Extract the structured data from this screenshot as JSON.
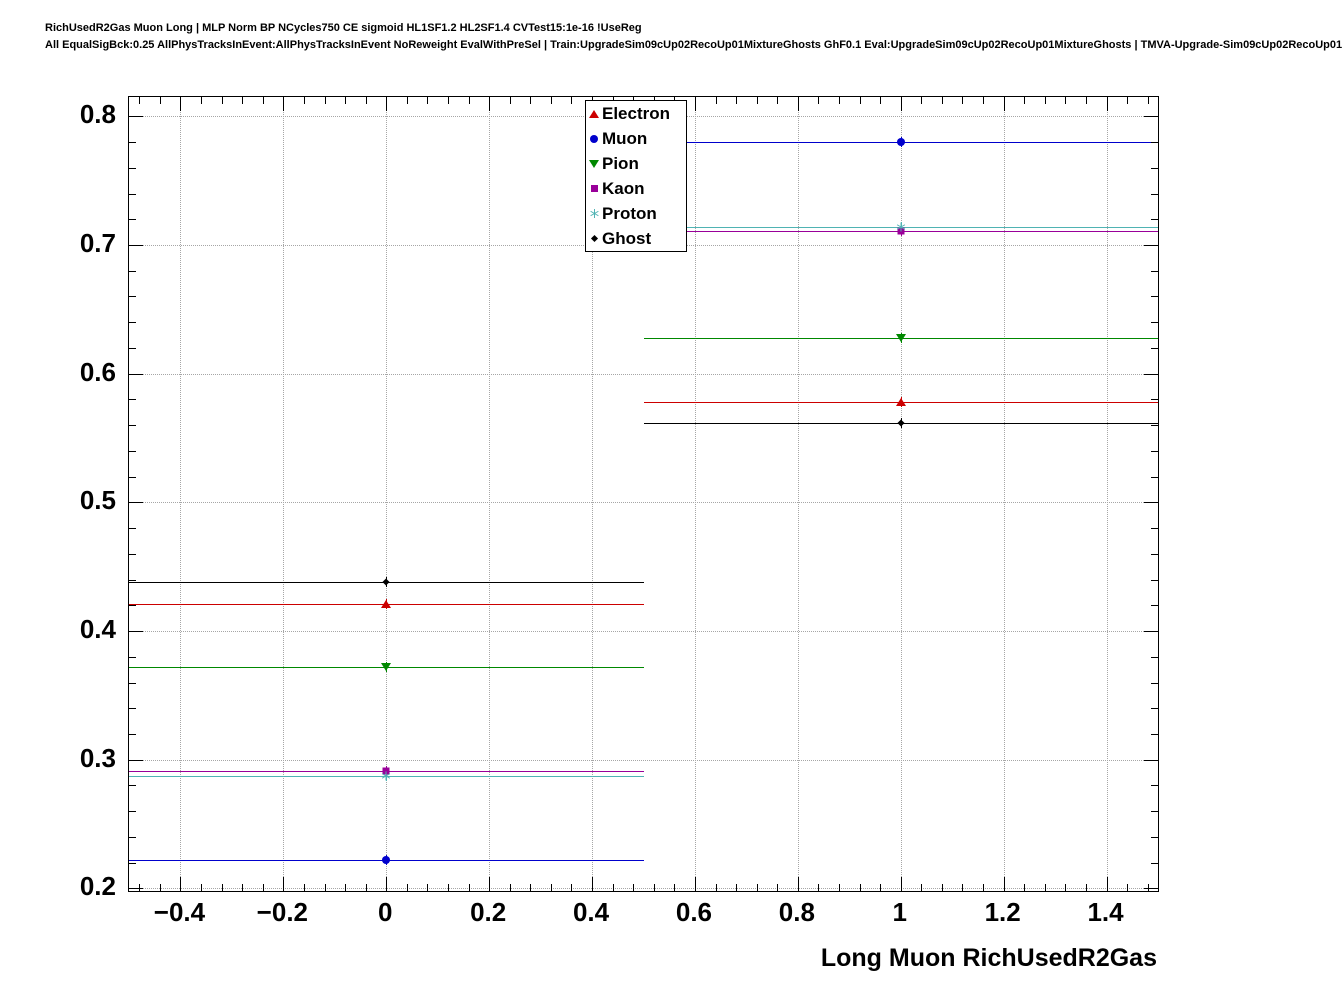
{
  "chart_data": {
    "type": "line",
    "title": "RichUsedR2Gas Muon Long | MLP Norm BP NCycles750 CE sigmoid HL1SF1.2 HL2SF1.4 CVTest15:1e-16 !UseReg",
    "subtitle": "All EqualSigBck:0.25 AllPhysTracksInEvent:AllPhysTracksInEvent NoReweight EvalWithPreSel | Train:UpgradeSim09cUp02RecoUp01MixtureGhosts GhF0.1 Eval:UpgradeSim09cUp02RecoUp01MixtureGhosts | TMVA-Upgrade-Sim09cUp02RecoUp01",
    "xlabel": "Long Muon RichUsedR2Gas",
    "ylabel": "",
    "xlim": [
      -0.5,
      1.5
    ],
    "ylim": [
      0.198,
      0.815
    ],
    "xticks": [
      -0.4,
      -0.2,
      0,
      0.2,
      0.4,
      0.6,
      0.8,
      1,
      1.2,
      1.4
    ],
    "xtick_labels": [
      "−0.4",
      "−0.2",
      "0",
      "0.2",
      "0.4",
      "0.6",
      "0.8",
      "1",
      "1.2",
      "1.4"
    ],
    "yticks": [
      0.2,
      0.3,
      0.4,
      0.5,
      0.6,
      0.7,
      0.8
    ],
    "ytick_labels": [
      "0.2",
      "0.3",
      "0.4",
      "0.5",
      "0.6",
      "0.7",
      "0.8"
    ],
    "x_minor_step": 0.04,
    "y_minor_step": 0.02,
    "grid": true,
    "legend_position": "top-center-overlay",
    "series": [
      {
        "name": "Electron",
        "color": "#cc0000",
        "marker": "triangle-up",
        "bins": [
          {
            "x": 0,
            "y": 0.421,
            "xlow": -0.5,
            "xhigh": 0.5
          },
          {
            "x": 1,
            "y": 0.578,
            "xlow": 0.5,
            "xhigh": 1.5
          }
        ]
      },
      {
        "name": "Muon",
        "color": "#0000cc",
        "marker": "circle",
        "bins": [
          {
            "x": 0,
            "y": 0.222,
            "xlow": -0.5,
            "xhigh": 0.5
          },
          {
            "x": 1,
            "y": 0.78,
            "xlow": 0.5,
            "xhigh": 1.5
          }
        ]
      },
      {
        "name": "Pion",
        "color": "#008800",
        "marker": "triangle-down",
        "bins": [
          {
            "x": 0,
            "y": 0.372,
            "xlow": -0.5,
            "xhigh": 0.5
          },
          {
            "x": 1,
            "y": 0.628,
            "xlow": 0.5,
            "xhigh": 1.5
          }
        ]
      },
      {
        "name": "Kaon",
        "color": "#990099",
        "marker": "square",
        "bins": [
          {
            "x": 0,
            "y": 0.291,
            "xlow": -0.5,
            "xhigh": 0.5
          },
          {
            "x": 1,
            "y": 0.711,
            "xlow": 0.5,
            "xhigh": 1.5
          }
        ]
      },
      {
        "name": "Proton",
        "color": "#4fb3b3",
        "marker": "star",
        "bins": [
          {
            "x": 0,
            "y": 0.287,
            "xlow": -0.5,
            "xhigh": 0.5
          },
          {
            "x": 1,
            "y": 0.714,
            "xlow": 0.5,
            "xhigh": 1.5
          }
        ]
      },
      {
        "name": "Ghost",
        "color": "#000000",
        "marker": "diamond",
        "bins": [
          {
            "x": 0,
            "y": 0.438,
            "xlow": -0.5,
            "xhigh": 0.5
          },
          {
            "x": 1,
            "y": 0.562,
            "xlow": 0.5,
            "xhigh": 1.5
          }
        ]
      }
    ]
  }
}
